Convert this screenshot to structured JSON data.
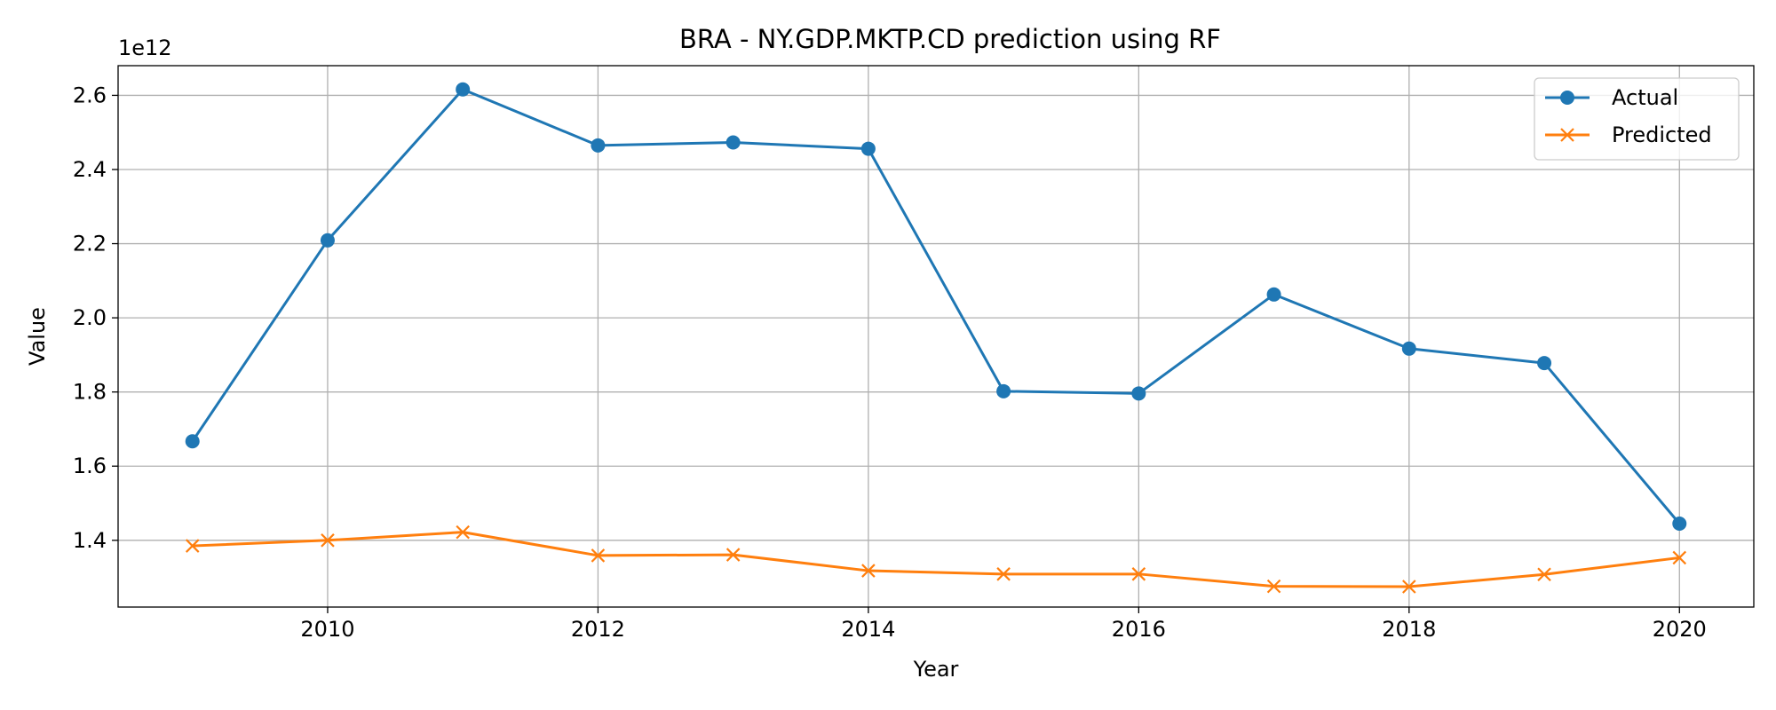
{
  "chart_data": {
    "type": "line",
    "title": "BRA - NY.GDP.MKTP.CD prediction using RF",
    "xlabel": "Year",
    "ylabel": "Value",
    "y_offset_text": "1e12",
    "x": [
      2009,
      2010,
      2011,
      2012,
      2013,
      2014,
      2015,
      2016,
      2017,
      2018,
      2019,
      2020
    ],
    "xlim": [
      2008.45,
      2020.55
    ],
    "ylim": [
      1.22,
      2.68
    ],
    "x_ticks": [
      2010,
      2012,
      2014,
      2016,
      2018,
      2020
    ],
    "y_ticks": [
      1.4,
      1.6,
      1.8,
      2.0,
      2.2,
      2.4,
      2.6
    ],
    "y_tick_labels": [
      "1.4",
      "1.6",
      "1.8",
      "2.0",
      "2.2",
      "2.4",
      "2.6"
    ],
    "grid": true,
    "legend_position": "top-right",
    "series": [
      {
        "name": "Actual",
        "color": "#1f77b4",
        "marker": "circle",
        "values": [
          1.667,
          2.209,
          2.616,
          2.465,
          2.473,
          2.456,
          1.802,
          1.796,
          2.063,
          1.917,
          1.878,
          1.445
        ]
      },
      {
        "name": "Predicted",
        "color": "#ff7f0e",
        "marker": "x",
        "values": [
          1.385,
          1.4,
          1.422,
          1.359,
          1.361,
          1.318,
          1.309,
          1.309,
          1.276,
          1.275,
          1.308,
          1.353
        ]
      }
    ]
  }
}
